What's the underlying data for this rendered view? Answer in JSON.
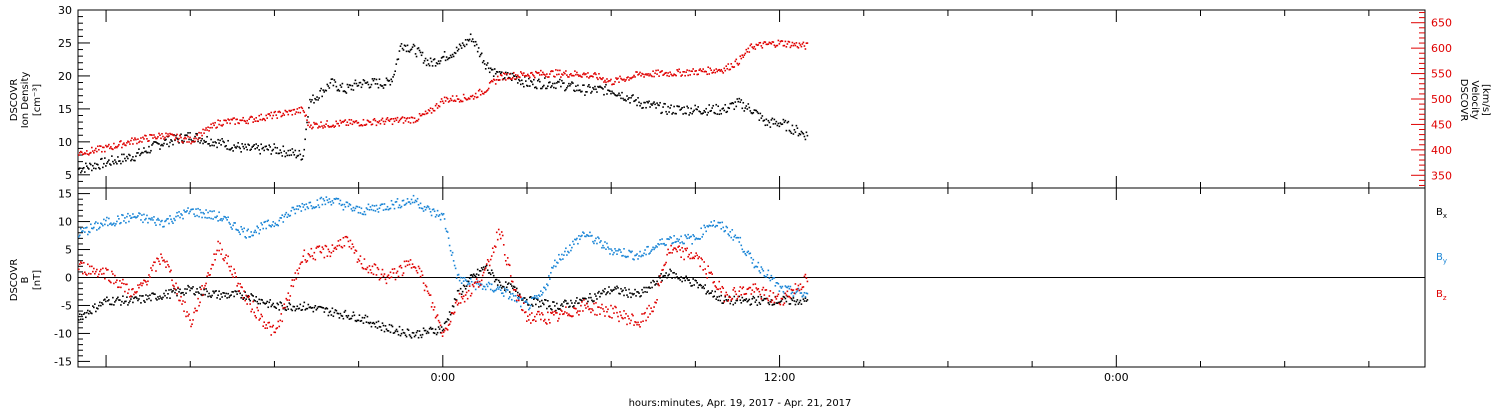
{
  "chart_data": [
    {
      "type": "scatter",
      "panel": "top",
      "xlabel": "hours:minutes, Apr. 19, 2017 - Apr. 21, 2017",
      "x_ticks": [
        "0:00",
        "12:00",
        "0:00"
      ],
      "xlim_hours": [
        -13,
        35
      ],
      "y_left": {
        "label_lines": [
          "DSCOVR",
          "Ion Density",
          "[cm⁻³]"
        ],
        "ylim": [
          3,
          30
        ],
        "ticks": [
          5,
          10,
          15,
          20,
          25,
          30
        ]
      },
      "y_right": {
        "label_lines": [
          "DSCOVR",
          "Velocity",
          "[km/s]"
        ],
        "ylim": [
          325,
          675
        ],
        "ticks": [
          350,
          400,
          450,
          500,
          550,
          600,
          650
        ],
        "color": "#e00000"
      },
      "series": [
        {
          "axis": "left",
          "color": "#000000",
          "x": [
            -13,
            -12,
            -11,
            -10,
            -9,
            -8,
            -7,
            -6,
            -5,
            -4.8,
            -4,
            -3.5,
            -3,
            -2,
            -1.8,
            -1.5,
            -1,
            -0.5,
            0,
            0.5,
            1,
            1.5,
            2,
            2.5,
            3,
            3.5,
            4,
            5,
            6,
            7,
            8,
            9,
            10,
            10.5,
            11,
            11.5,
            12,
            12.5,
            13
          ],
          "y": [
            6,
            7,
            8,
            10,
            11,
            10,
            9,
            9,
            8,
            16,
            19,
            18,
            19,
            19,
            20,
            25,
            24,
            22,
            23,
            24,
            26,
            22,
            20,
            20,
            19,
            19,
            19,
            18,
            18,
            16,
            15,
            15,
            15,
            16,
            15,
            13,
            13,
            12,
            11
          ]
        },
        {
          "axis": "right",
          "color": "#e00000",
          "x": [
            -13,
            -12,
            -11,
            -10,
            -9,
            -8,
            -7,
            -6,
            -5,
            -4.8,
            -3,
            -2,
            -1,
            -0.5,
            0,
            1,
            1.5,
            2,
            3,
            4,
            5,
            5.5,
            6,
            7,
            8,
            9,
            10,
            10.5,
            11,
            12,
            13
          ],
          "y": [
            395,
            405,
            420,
            430,
            420,
            455,
            460,
            470,
            480,
            450,
            455,
            458,
            462,
            475,
            500,
            505,
            520,
            545,
            550,
            552,
            550,
            545,
            535,
            550,
            552,
            555,
            560,
            575,
            605,
            612,
            605
          ]
        }
      ]
    },
    {
      "type": "scatter",
      "panel": "bottom",
      "xlim_hours": [
        -13,
        35
      ],
      "x_ticks": [
        "0:00",
        "12:00",
        "0:00"
      ],
      "y": {
        "label_lines": [
          "DSCOVR",
          "B",
          "[nT]"
        ],
        "ylim": [
          -16,
          16
        ],
        "ticks": [
          -15,
          -10,
          -5,
          0,
          5,
          10,
          15
        ]
      },
      "zero_line": true,
      "series": [
        {
          "name": "Bx",
          "color": "#000000",
          "x": [
            -13,
            -12,
            -11,
            -10,
            -9,
            -8,
            -7,
            -6,
            -5,
            -4,
            -3,
            -2,
            -1,
            0,
            0.5,
            1,
            1.5,
            2,
            2.5,
            3,
            4,
            5,
            6,
            7,
            8,
            9,
            10,
            11,
            12,
            13
          ],
          "y": [
            -7,
            -4,
            -4,
            -3,
            -2,
            -3,
            -3,
            -5,
            -5,
            -6,
            -7,
            -9,
            -10,
            -9,
            -3,
            0,
            2,
            -1,
            -2,
            -4,
            -5,
            -4,
            -2,
            -3,
            1,
            -1,
            -4,
            -4,
            -4,
            -4
          ]
        },
        {
          "name": "By",
          "color": "#1a85d6",
          "x": [
            -13,
            -12,
            -11,
            -10,
            -9,
            -8,
            -7,
            -6,
            -5,
            -4,
            -3,
            -2,
            -1,
            -0.5,
            0,
            0.5,
            1,
            2,
            3,
            3.5,
            4,
            5,
            6,
            7,
            8,
            9,
            9.5,
            10,
            10.5,
            11,
            11.5,
            12,
            13
          ],
          "y": [
            8,
            10,
            11,
            10,
            12,
            11,
            8,
            10,
            13,
            14,
            12,
            13,
            14,
            12,
            11,
            0,
            -1,
            -2,
            -5,
            -3,
            3,
            8,
            5,
            4,
            7,
            7,
            10,
            9,
            7,
            3,
            1,
            -2,
            -3
          ]
        },
        {
          "name": "Bz",
          "color": "#e00000",
          "x": [
            -13,
            -12,
            -11,
            -10,
            -9,
            -8,
            -7,
            -6,
            -5,
            -4,
            -3.5,
            -3,
            -2,
            -1,
            0,
            0.5,
            1,
            1.5,
            2,
            2.5,
            3,
            4,
            5,
            6,
            7,
            7.5,
            8,
            9,
            10,
            11,
            12,
            13
          ],
          "y": [
            2,
            1,
            -3,
            4,
            -8,
            6,
            -4,
            -10,
            4,
            5,
            7,
            3,
            0,
            3,
            -10,
            -4,
            -2,
            1,
            9,
            -2,
            -7,
            -7,
            -5,
            -6,
            -8,
            -5,
            5,
            4,
            -3,
            -2,
            -4,
            0
          ]
        }
      ],
      "legend": [
        "Bx",
        "By",
        "Bz"
      ]
    }
  ]
}
